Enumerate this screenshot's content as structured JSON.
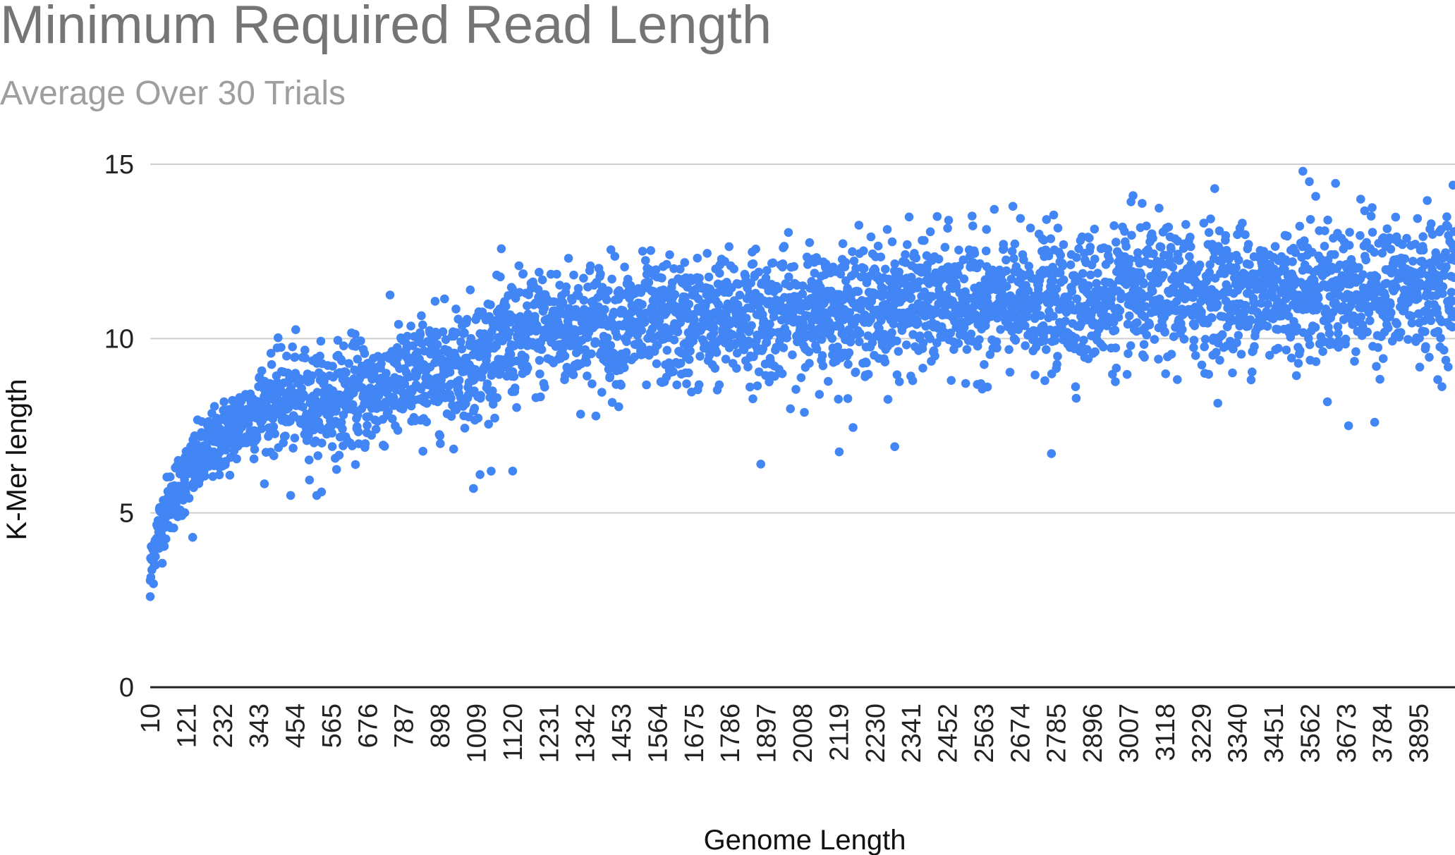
{
  "chart_data": {
    "type": "scatter",
    "title": "Minimum Required Read Length",
    "subtitle": "Average Over 30 Trials",
    "xlabel": "Genome Length",
    "ylabel": "K-Mer length",
    "xlim": [
      10,
      4006
    ],
    "ylim": [
      0,
      15
    ],
    "yticks": [
      0,
      5,
      10,
      15
    ],
    "xticks": [
      "10",
      "121",
      "232",
      "343",
      "454",
      "565",
      "676",
      "787",
      "898",
      "1009",
      "1120",
      "1231",
      "1342",
      "1453",
      "1564",
      "1675",
      "1786",
      "1897",
      "2008",
      "2119",
      "2230",
      "2341",
      "2452",
      "2563",
      "2674",
      "2785",
      "2896",
      "3007",
      "3118",
      "3229",
      "3340",
      "3451",
      "3562",
      "3673",
      "3784",
      "3895"
    ],
    "grid": true,
    "legend": "none",
    "marker_color": "#4285f4",
    "series": [
      {
        "trend": {
          "x": [
            10,
            20,
            40,
            70,
            100,
            150,
            200,
            250,
            300,
            350,
            400,
            450,
            500,
            600,
            700,
            800,
            900,
            1000,
            1100,
            1200,
            1300,
            1400,
            1600,
            1800,
            2000,
            2200,
            2400,
            2600,
            2800,
            3000,
            3200,
            3400,
            3600,
            3800,
            4006
          ],
          "y": [
            3.2,
            3.9,
            4.6,
            5.3,
            5.8,
            6.4,
            6.9,
            7.3,
            7.7,
            8.0,
            8.2,
            8.3,
            8.1,
            8.3,
            8.5,
            8.8,
            9.1,
            9.4,
            9.9,
            10.2,
            10.4,
            10.4,
            10.4,
            10.6,
            10.7,
            10.9,
            11.0,
            11.0,
            11.1,
            11.2,
            11.3,
            11.3,
            11.4,
            11.4,
            11.5
          ]
        },
        "spread": {
          "x": [
            10,
            200,
            500,
            1000,
            1200,
            2000,
            3000,
            4006
          ],
          "sd": [
            0.45,
            0.5,
            0.75,
            0.85,
            0.9,
            0.9,
            0.95,
            0.95
          ]
        },
        "n_points": 4000,
        "outliers": [
          {
            "x": 10,
            "y": 2.6
          },
          {
            "x": 140,
            "y": 4.3
          },
          {
            "x": 440,
            "y": 5.5
          },
          {
            "x": 520,
            "y": 5.5
          },
          {
            "x": 1000,
            "y": 5.7
          },
          {
            "x": 1020,
            "y": 6.1
          },
          {
            "x": 1120,
            "y": 6.2
          },
          {
            "x": 1880,
            "y": 6.4
          },
          {
            "x": 2120,
            "y": 6.75
          },
          {
            "x": 2290,
            "y": 6.9
          },
          {
            "x": 2770,
            "y": 6.7
          },
          {
            "x": 3020,
            "y": 14.1
          },
          {
            "x": 3270,
            "y": 14.3
          },
          {
            "x": 3540,
            "y": 14.8
          },
          {
            "x": 3560,
            "y": 14.5
          },
          {
            "x": 3640,
            "y": 14.45
          },
          {
            "x": 3680,
            "y": 7.5
          },
          {
            "x": 3760,
            "y": 7.6
          },
          {
            "x": 4000,
            "y": 14.4
          }
        ]
      }
    ]
  }
}
